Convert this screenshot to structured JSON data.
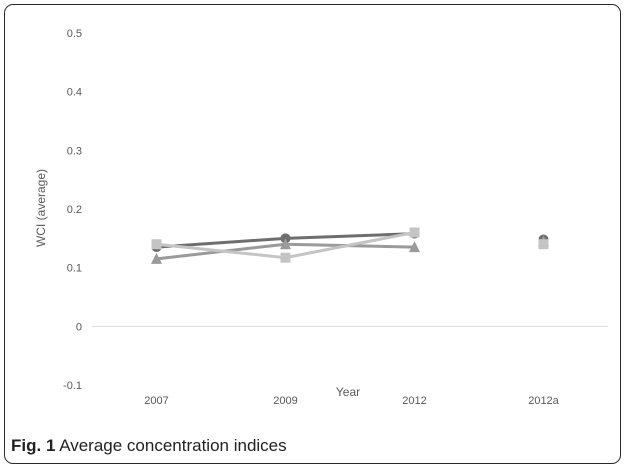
{
  "chart_data": {
    "type": "line",
    "categories": [
      "2007",
      "2009",
      "2012",
      "2012a"
    ],
    "y_ticks": [
      "0.5",
      "0.4",
      "0.3",
      "0.2",
      "0.1",
      "0",
      "-0.1"
    ],
    "ylim": [
      -0.1,
      0.5
    ],
    "xlabel": "Year",
    "ylabel": "WCI (average)",
    "grid": false,
    "zero_line": true,
    "series": [
      {
        "marker": "circle",
        "color": "#6e6e6e",
        "values": [
          0.135,
          0.15,
          0.158,
          0.148
        ]
      },
      {
        "marker": "triangle",
        "color": "#9a9a9a",
        "values": [
          0.115,
          0.14,
          0.135,
          0.145
        ]
      },
      {
        "marker": "square",
        "color": "#c4c4c4",
        "values": [
          0.14,
          0.117,
          0.16,
          0.14
        ]
      }
    ]
  },
  "caption": {
    "label": "Fig. 1",
    "text": " Average concentration indices"
  }
}
